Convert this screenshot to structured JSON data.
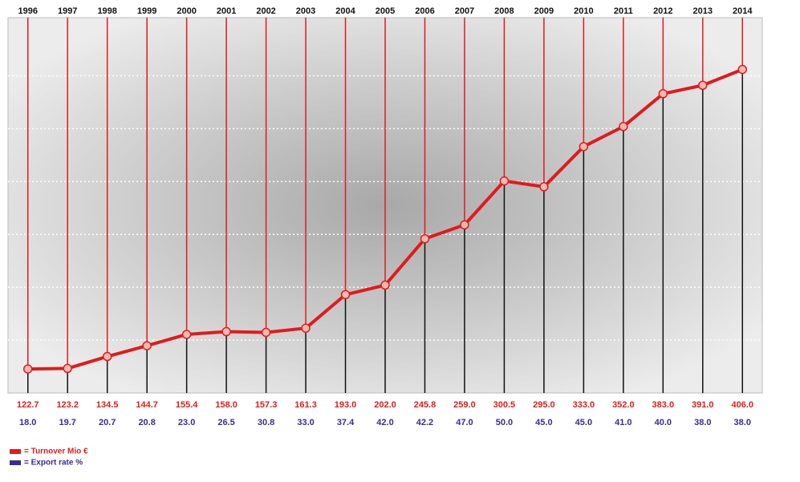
{
  "chart_data": {
    "type": "line",
    "categories": [
      "1996",
      "1997",
      "1998",
      "1999",
      "2000",
      "2001",
      "2002",
      "2003",
      "2004",
      "2005",
      "2006",
      "2007",
      "2008",
      "2009",
      "2010",
      "2011",
      "2012",
      "2013",
      "2014"
    ],
    "series": [
      {
        "name": "= Turnover Mio €",
        "color": "#e01b1b",
        "values": [
          122.7,
          123.2,
          134.5,
          144.7,
          155.4,
          158.0,
          157.3,
          161.3,
          193.0,
          202.0,
          245.8,
          259.0,
          300.5,
          295.0,
          333.0,
          352.0,
          383.0,
          391.0,
          406.0
        ],
        "value_labels": [
          "122.7",
          "123.2",
          "134.5",
          "144.7",
          "155.4",
          "158.0",
          "157.3",
          "161.3",
          "193.0",
          "202.0",
          "245.8",
          "259.0",
          "300.5",
          "295.0",
          "333.0",
          "352.0",
          "383.0",
          "391.0",
          "406.0"
        ]
      },
      {
        "name": "= Export rate %",
        "color": "#3b2b8f",
        "values": [
          18.0,
          19.7,
          20.7,
          20.8,
          23.0,
          26.5,
          30.8,
          33.0,
          37.4,
          42.0,
          42.2,
          47.0,
          50.0,
          45.0,
          45.0,
          41.0,
          40.0,
          38.0,
          38.0
        ],
        "value_labels": [
          "18.0",
          "19.7",
          "20.7",
          "20.8",
          "23.0",
          "26.5",
          "30.8",
          "33.0",
          "37.4",
          "42.0",
          "42.2",
          "47.0",
          "50.0",
          "45.0",
          "45.0",
          "41.0",
          "40.0",
          "38.0",
          "38.0"
        ]
      }
    ],
    "ylim": [
      100,
      455
    ],
    "yticks": [
      150,
      200,
      250,
      300,
      350,
      400
    ],
    "grid": true
  }
}
